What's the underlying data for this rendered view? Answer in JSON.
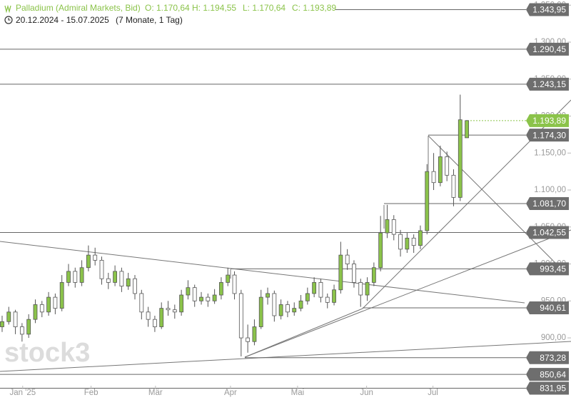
{
  "chart_data": {
    "type": "candlestick",
    "title": "Palladium (Admiral Markets, Bid)",
    "ohlc_labels": [
      "O: 1.170,64",
      "H: 1.194,55",
      "L: 1.170,64",
      "C: 1.193,89"
    ],
    "date_range": "20.12.2024 - 15.07.2025",
    "period": "(7 Monate, 1 Tag)",
    "watermark": "stock3",
    "up_color": "#8bc34a",
    "down_color": "#ffffff",
    "candles": [
      [
        915,
        930,
        908,
        922
      ],
      [
        922,
        942,
        918,
        935
      ],
      [
        935,
        938,
        905,
        915
      ],
      [
        915,
        920,
        895,
        905
      ],
      [
        905,
        932,
        900,
        925
      ],
      [
        925,
        952,
        920,
        945
      ],
      [
        945,
        950,
        928,
        935
      ],
      [
        935,
        962,
        930,
        955
      ],
      [
        955,
        960,
        932,
        940
      ],
      [
        940,
        985,
        936,
        975
      ],
      [
        975,
        1000,
        970,
        990
      ],
      [
        990,
        995,
        968,
        975
      ],
      [
        975,
        1005,
        970,
        995
      ],
      [
        995,
        1025,
        990,
        1012
      ],
      [
        1012,
        1022,
        998,
        1005
      ],
      [
        1005,
        1010,
        972,
        980
      ],
      [
        980,
        988,
        966,
        975
      ],
      [
        975,
        998,
        970,
        990
      ],
      [
        990,
        995,
        962,
        970
      ],
      [
        970,
        988,
        965,
        980
      ],
      [
        980,
        985,
        952,
        960
      ],
      [
        960,
        965,
        925,
        935
      ],
      [
        935,
        942,
        915,
        925
      ],
      [
        925,
        930,
        908,
        915
      ],
      [
        915,
        948,
        912,
        940
      ],
      [
        940,
        950,
        930,
        938
      ],
      [
        938,
        945,
        926,
        935
      ],
      [
        935,
        965,
        930,
        958
      ],
      [
        958,
        978,
        952,
        968
      ],
      [
        968,
        972,
        942,
        950
      ],
      [
        950,
        962,
        945,
        955
      ],
      [
        955,
        960,
        942,
        950
      ],
      [
        950,
        966,
        946,
        958
      ],
      [
        958,
        982,
        952,
        975
      ],
      [
        975,
        995,
        970,
        985
      ],
      [
        985,
        990,
        952,
        960
      ],
      [
        960,
        965,
        875,
        900
      ],
      [
        900,
        918,
        880,
        895
      ],
      [
        895,
        925,
        890,
        915
      ],
      [
        915,
        965,
        912,
        955
      ],
      [
        955,
        968,
        945,
        960
      ],
      [
        960,
        964,
        922,
        930
      ],
      [
        930,
        952,
        925,
        945
      ],
      [
        945,
        950,
        928,
        935
      ],
      [
        935,
        948,
        930,
        940
      ],
      [
        940,
        958,
        936,
        950
      ],
      [
        950,
        968,
        945,
        960
      ],
      [
        960,
        982,
        955,
        975
      ],
      [
        975,
        980,
        948,
        955
      ],
      [
        955,
        960,
        940,
        948
      ],
      [
        948,
        972,
        944,
        965
      ],
      [
        965,
        1030,
        960,
        1012
      ],
      [
        1012,
        1020,
        992,
        1000
      ],
      [
        1000,
        1005,
        968,
        975
      ],
      [
        975,
        980,
        942,
        958
      ],
      [
        958,
        982,
        950,
        975
      ],
      [
        975,
        1002,
        970,
        995
      ],
      [
        995,
        1065,
        990,
        1042
      ],
      [
        1042,
        1080,
        1035,
        1060
      ],
      [
        1060,
        1066,
        1032,
        1040
      ],
      [
        1040,
        1046,
        1010,
        1020
      ],
      [
        1020,
        1042,
        1015,
        1035
      ],
      [
        1035,
        1040,
        1015,
        1025
      ],
      [
        1025,
        1052,
        1020,
        1045
      ],
      [
        1045,
        1135,
        1040,
        1125
      ],
      [
        1125,
        1150,
        1100,
        1110
      ],
      [
        1110,
        1160,
        1105,
        1145
      ],
      [
        1145,
        1152,
        1112,
        1120
      ],
      [
        1120,
        1128,
        1078,
        1090
      ],
      [
        1090,
        1229,
        1085,
        1195
      ],
      [
        1170.64,
        1194.55,
        1170.64,
        1193.89
      ]
    ],
    "xlim": [
      -0.32,
      78.7
    ],
    "xticks": [
      {
        "value": 3.1,
        "label": "Jan '25"
      },
      {
        "value": 13.4,
        "label": "Feb"
      },
      {
        "value": 23.1,
        "label": "Mär"
      },
      {
        "value": 34.4,
        "label": "Apr"
      },
      {
        "value": 44.5,
        "label": "Mai"
      },
      {
        "value": 54.9,
        "label": "Jun"
      },
      {
        "value": 64.9,
        "label": "Jul"
      }
    ],
    "ylim": [
      816,
      1357
    ],
    "yticks": [
      {
        "value": 900,
        "label": "900,00"
      },
      {
        "value": 950,
        "label": "950,00"
      },
      {
        "value": 1000,
        "label": "1.000,00"
      },
      {
        "value": 1050,
        "label": "1.050,00"
      },
      {
        "value": 1100,
        "label": "1.100,00"
      },
      {
        "value": 1150,
        "label": "1.150,00"
      },
      {
        "value": 1200,
        "label": "1.200,00"
      },
      {
        "value": 1250,
        "label": "1.250,00"
      },
      {
        "value": 1300,
        "label": "1.300,00"
      },
      {
        "value": 1350,
        "label": "1.350,00"
      }
    ],
    "levels": [
      {
        "value": 1343.95,
        "label": "1.343,95",
        "color": "#6e6e6e"
      },
      {
        "value": 1290.45,
        "label": "1.290,45",
        "color": "#6e6e6e"
      },
      {
        "value": 1243.15,
        "label": "1.243,15",
        "color": "#6e6e6e"
      },
      {
        "value": 1193.89,
        "label": "1.193,89",
        "color": "#8bc34a"
      },
      {
        "value": 1174.3,
        "label": "1.174,30",
        "color": "#6e6e6e"
      },
      {
        "value": 1081.7,
        "label": "1.081,70",
        "color": "#6e6e6e"
      },
      {
        "value": 1042.55,
        "label": "1.042,55",
        "color": "#6e6e6e"
      },
      {
        "value": 993.45,
        "label": "993,45",
        "color": "#6e6e6e"
      },
      {
        "value": 940.61,
        "label": "940,61",
        "color": "#6e6e6e"
      },
      {
        "value": 873.28,
        "label": "873,28",
        "color": "#6e6e6e"
      },
      {
        "value": 850.64,
        "label": "850,64",
        "color": "#6e6e6e"
      },
      {
        "value": 831.95,
        "label": "831,95",
        "color": "#6e6e6e"
      }
    ]
  }
}
